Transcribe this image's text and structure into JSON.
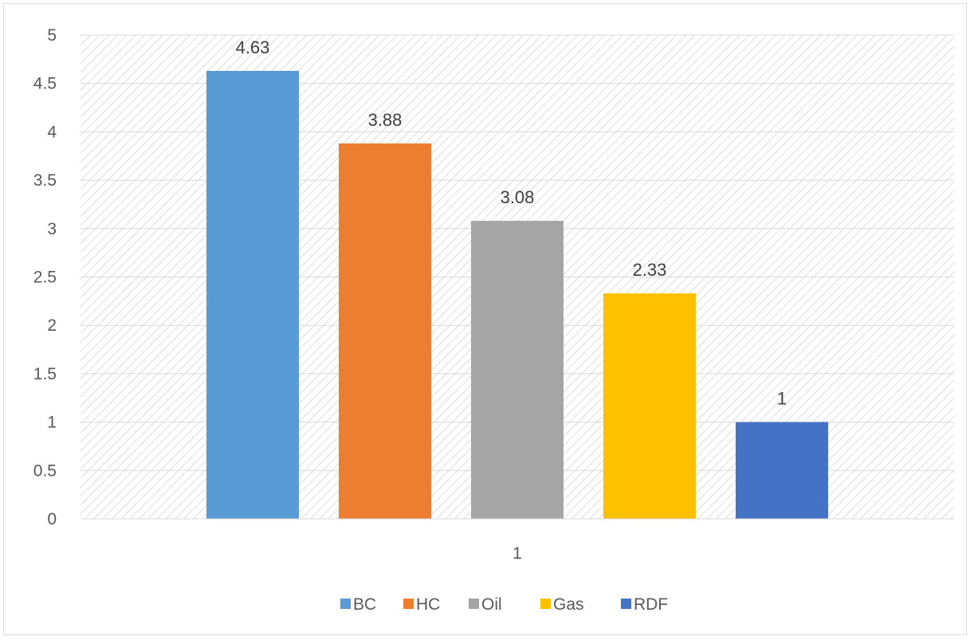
{
  "chart_data": {
    "type": "bar",
    "categories": [
      "1"
    ],
    "series": [
      {
        "name": "BC",
        "values": [
          4.63
        ],
        "color": "#5b9bd5"
      },
      {
        "name": "HC",
        "values": [
          3.88
        ],
        "color": "#ed7d31"
      },
      {
        "name": "Oil",
        "values": [
          3.08
        ],
        "color": "#a5a5a5"
      },
      {
        "name": "Gas",
        "values": [
          2.33
        ],
        "color": "#ffc000"
      },
      {
        "name": "RDF",
        "values": [
          1
        ],
        "color": "#4472c4"
      }
    ],
    "title": "",
    "xlabel": "",
    "ylabel": "",
    "ylim": [
      0,
      5
    ],
    "yticks": [
      "0",
      "0.5",
      "1",
      "1.5",
      "2",
      "2.5",
      "3",
      "3.5",
      "4",
      "4.5",
      "5"
    ],
    "data_labels": [
      "4.63",
      "3.88",
      "3.08",
      "2.33",
      "1"
    ],
    "grid": true,
    "legend_position": "bottom",
    "plot_background": "hatched"
  }
}
